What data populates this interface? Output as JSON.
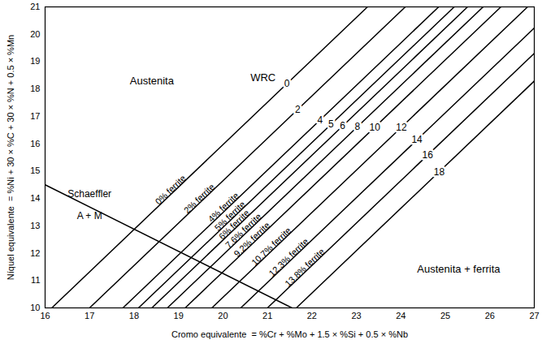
{
  "chart_data": {
    "type": "line",
    "xlabel": "Cromo equivalente  = %Cr + %Mo + 1.5 × %Si + 0.5 × %Nb",
    "ylabel": "Níquel equivalente  = %Ni + 30 × %C + 30 × %N + 0.5 × %Mn",
    "xlim": [
      16,
      27
    ],
    "ylim": [
      10,
      21
    ],
    "xticks": [
      16,
      17,
      18,
      19,
      20,
      21,
      22,
      23,
      24,
      25,
      26,
      27
    ],
    "yticks": [
      10,
      11,
      12,
      13,
      14,
      15,
      16,
      17,
      18,
      19,
      20,
      21
    ],
    "grid": false,
    "series": [
      {
        "name": "0",
        "label": "0% ferrite",
        "color": "#000000",
        "x": [
          16.15,
          23.25
        ],
        "values": [
          10,
          21
        ]
      },
      {
        "name": "2",
        "label": "2% ferrite",
        "color": "#000000",
        "x": [
          17.0,
          24.1
        ],
        "values": [
          10,
          21
        ]
      },
      {
        "name": "4",
        "label": "4% ferrite",
        "color": "#000000",
        "x": [
          17.75,
          24.85
        ],
        "values": [
          10,
          21
        ]
      },
      {
        "name": "5",
        "label": "5% ferrite",
        "color": "#000000",
        "x": [
          18.1,
          25.2
        ],
        "values": [
          10,
          21
        ]
      },
      {
        "name": "6",
        "label": "6% ferrite",
        "color": "#000000",
        "x": [
          18.4,
          25.5
        ],
        "values": [
          10,
          21
        ]
      },
      {
        "name": "8",
        "label": "7.6% ferrite",
        "color": "#000000",
        "x": [
          18.75,
          25.85
        ],
        "values": [
          10,
          21
        ]
      },
      {
        "name": "10",
        "label": "9.2% ferrite",
        "color": "#000000",
        "x": [
          19.15,
          26.25
        ],
        "values": [
          10,
          21
        ]
      },
      {
        "name": "12",
        "label": "10.7% ferrite",
        "color": "#000000",
        "x": [
          19.75,
          26.85
        ],
        "values": [
          10,
          21
        ]
      },
      {
        "name": "14",
        "label": "12.3% ferrite",
        "color": "#000000",
        "x": [
          20.4,
          27
        ],
        "values": [
          10,
          20.23
        ]
      },
      {
        "name": "16",
        "label": "13.8% ferrite",
        "color": "#000000",
        "x": [
          21.0,
          27
        ],
        "values": [
          10,
          19.3
        ]
      },
      {
        "name": "18",
        "color": "#000000",
        "x": [
          21.65,
          27
        ],
        "values": [
          10,
          18.29
        ]
      }
    ],
    "schaeffler": {
      "name": "Schaeffler",
      "label": "A + M",
      "color": "#000000",
      "x": [
        16,
        21.55
      ],
      "values": [
        14.5,
        10
      ]
    },
    "annotations": [
      {
        "text": "Austenita",
        "x": 18.4,
        "y": 18.3
      },
      {
        "text": "Austenita + ferrita",
        "x": 25.3,
        "y": 11.4
      },
      {
        "text": "WRC",
        "x": 20.9,
        "y": 18.4
      }
    ]
  }
}
